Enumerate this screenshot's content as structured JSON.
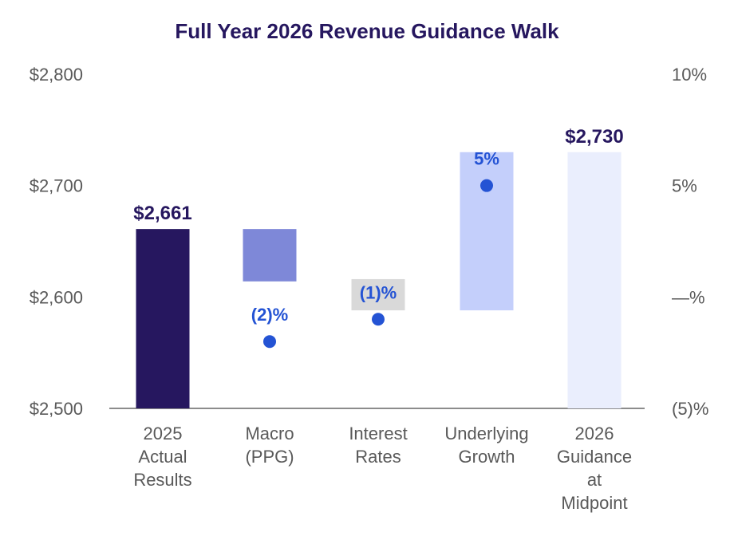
{
  "chart_data": {
    "type": "waterfall",
    "title": "Full Year 2026 Revenue Guidance Walk",
    "y_left": {
      "ticks": [
        "$2,800",
        "$2,700",
        "$2,600",
        "$2,500"
      ],
      "tick_values": [
        2800,
        2700,
        2600,
        2500
      ],
      "ylim": [
        2500,
        2800
      ]
    },
    "y_right": {
      "ticks": [
        "10%",
        "5%",
        "—%",
        "(5)%"
      ],
      "tick_values": [
        10,
        5,
        0,
        -5
      ],
      "ylim": [
        -5,
        10
      ]
    },
    "categories": [
      {
        "lines": [
          "2025",
          "Actual",
          "Results"
        ]
      },
      {
        "lines": [
          "Macro",
          "(PPG)"
        ]
      },
      {
        "lines": [
          "Interest",
          "Rates"
        ]
      },
      {
        "lines": [
          "Underlying",
          "Growth"
        ]
      },
      {
        "lines": [
          "2026",
          "Guidance",
          "at",
          "Midpoint"
        ]
      }
    ],
    "bars": [
      {
        "kind": "total",
        "bottom": 2500,
        "top": 2661,
        "color": "#26175f",
        "label": "$2,661",
        "label_color": "#26175f"
      },
      {
        "kind": "delta",
        "bottom": 2614,
        "top": 2661,
        "color": "#7e88d8",
        "label": "",
        "label_color": "#26175f"
      },
      {
        "kind": "delta",
        "bottom": 2588,
        "top": 2616,
        "color": "#d9d9d9",
        "label": "",
        "label_color": "#26175f"
      },
      {
        "kind": "delta",
        "bottom": 2588,
        "top": 2730,
        "color": "#c4cffb",
        "label": "",
        "label_color": "#26175f"
      },
      {
        "kind": "total",
        "bottom": 2500,
        "top": 2730,
        "color": "#eaeefd",
        "label": "$2,730",
        "label_color": "#26175f"
      }
    ],
    "growth_pct": [
      null,
      {
        "value": -2,
        "label": "(2)%"
      },
      {
        "value": -1,
        "label": "(1)%"
      },
      {
        "value": 5,
        "label": "5%"
      },
      null
    ],
    "colors": {
      "title": "#26175f",
      "dot": "#2453d4",
      "pct_label": "#2453d4",
      "axis": "#8c8c8c"
    }
  }
}
